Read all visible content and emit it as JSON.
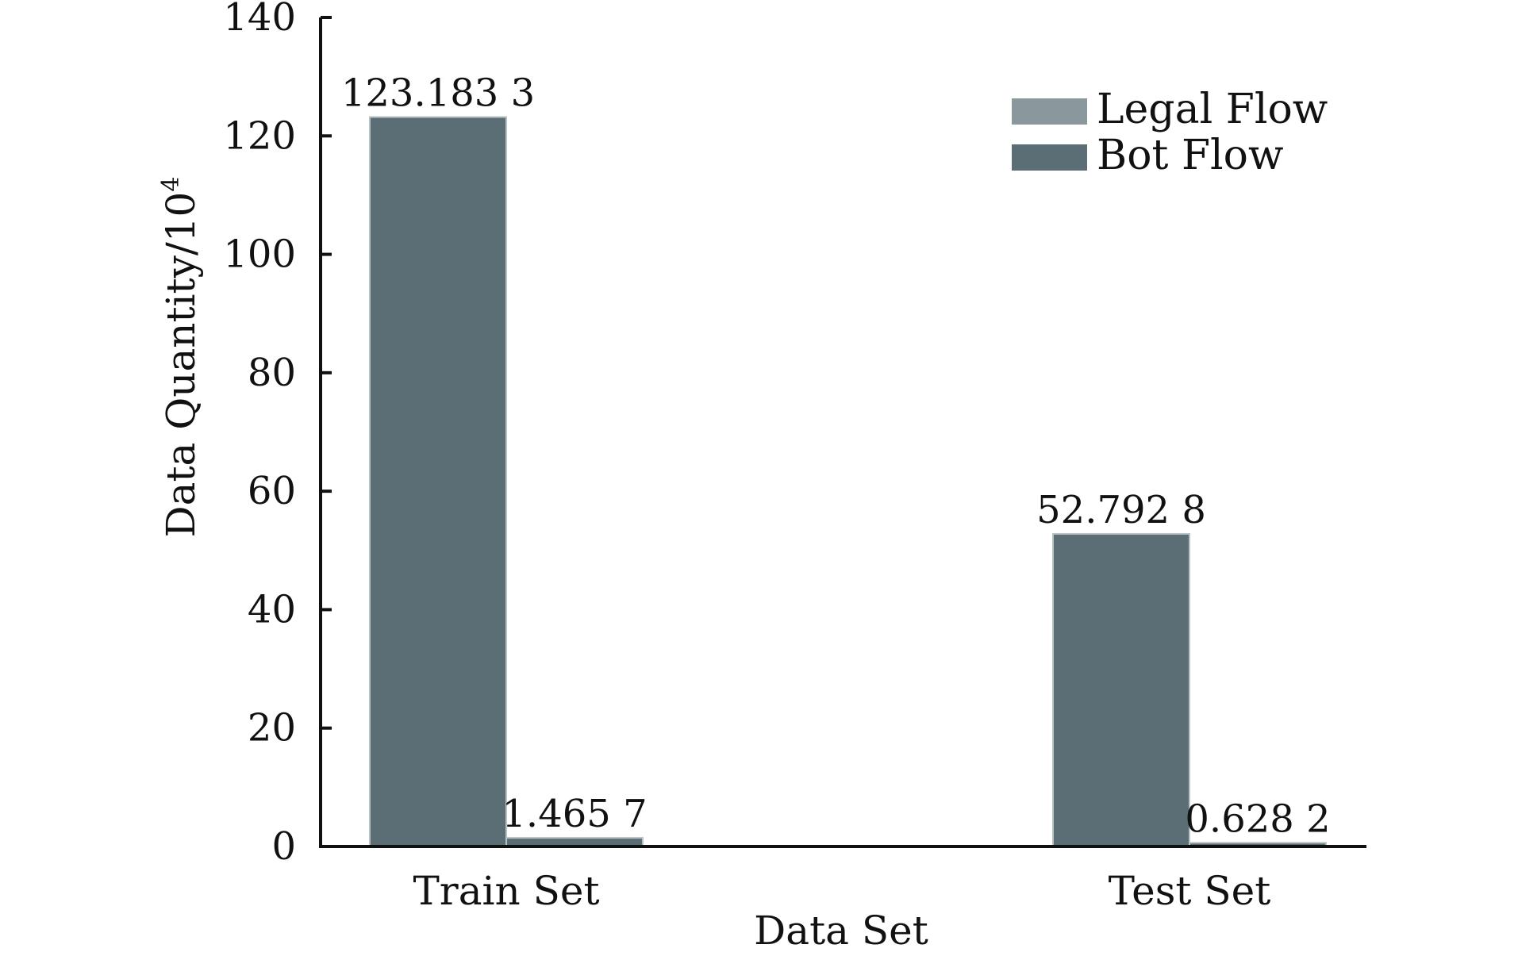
{
  "chart_data": {
    "type": "bar",
    "xlabel": "Data Set",
    "ylabel": "Data Quantity/10",
    "ylabel_superscript": "4",
    "categories": [
      "Train Set",
      "Test Set"
    ],
    "series": [
      {
        "name": "Legal Flow",
        "color": "#5b6e76",
        "values": [
          123.1833,
          52.7928
        ],
        "labels": [
          "123.183 3",
          "52.792 8"
        ]
      },
      {
        "name": "Bot Flow",
        "color": "#5b6e76",
        "values": [
          1.4657,
          0.6282
        ],
        "labels": [
          "1.465 7",
          "0.628 2"
        ]
      }
    ],
    "legend": [
      {
        "name": "Legal Flow",
        "color": "#8a989d"
      },
      {
        "name": "Bot Flow",
        "color": "#5b6e76"
      }
    ],
    "legend_position": "top-right",
    "ylim": [
      0,
      140
    ],
    "yticks": [
      0,
      20,
      40,
      60,
      80,
      100,
      120,
      140
    ],
    "grid": false
  }
}
